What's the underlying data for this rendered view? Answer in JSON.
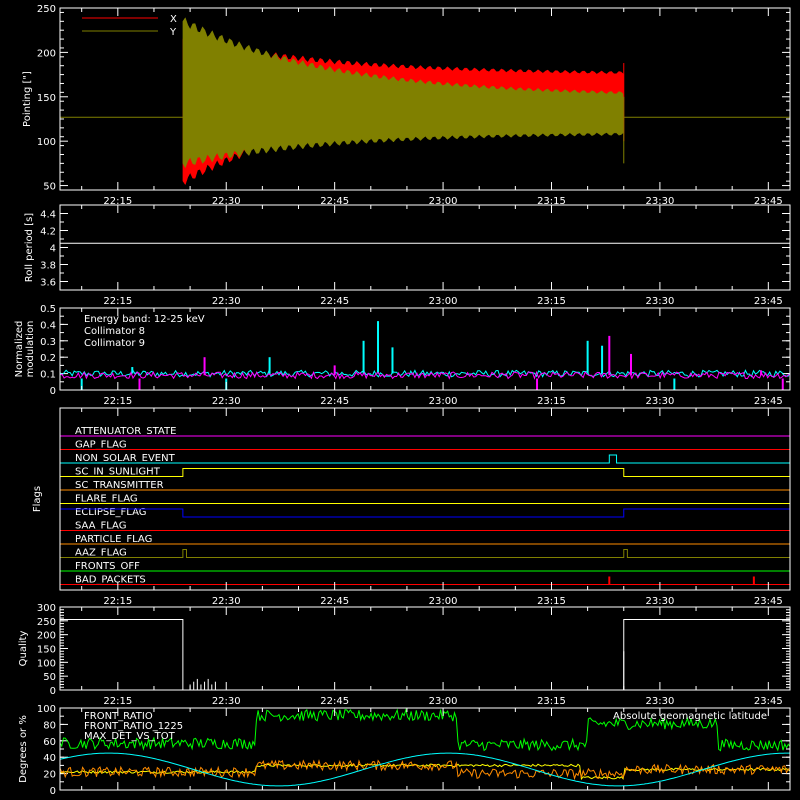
{
  "time_ticks": [
    "22:15",
    "22:30",
    "22:45",
    "23:00",
    "23:15",
    "23:30",
    "23:45"
  ],
  "xlim_minutes": [
    1327,
    1428
  ],
  "chart_data": [
    {
      "type": "line",
      "panel": "pointing",
      "ylabel": "Pointing [\"]",
      "ylim": [
        45,
        250
      ],
      "yticks": [
        50,
        100,
        150,
        200,
        250
      ],
      "legend_placement": "top-left",
      "series": [
        {
          "name": "X",
          "color": "#ff0000",
          "baseline": 127,
          "active_range": [
            "22:24",
            "23:25"
          ],
          "envelope_start": [
            55,
            215
          ],
          "envelope_end": [
            147,
            175
          ]
        },
        {
          "name": "Y",
          "color": "#808000",
          "baseline": 127,
          "active_range": [
            "22:24",
            "23:25"
          ],
          "envelope_start": [
            75,
            235
          ],
          "envelope_end": [
            110,
            150
          ]
        }
      ]
    },
    {
      "type": "line",
      "panel": "roll_period",
      "ylabel": "Roll period [s]",
      "ylim": [
        3.5,
        4.5
      ],
      "yticks": [
        3.6,
        3.8,
        4.0,
        4.2,
        4.4
      ],
      "series": [
        {
          "name": "",
          "color": "#ffffff",
          "value": 4.05
        }
      ]
    },
    {
      "type": "line",
      "panel": "modulation",
      "ylabel": "Normalized modulation",
      "ylim": [
        0,
        0.5
      ],
      "yticks": [
        0.0,
        0.1,
        0.2,
        0.3,
        0.4,
        0.5
      ],
      "annotation": "Energy band: 12-25 keV",
      "series": [
        {
          "name": "Collimator 8",
          "color": "#00ffff",
          "baseline": 0.1,
          "spikes": [
            [
              "22:51",
              0.42
            ],
            [
              "22:36",
              0.2
            ],
            [
              "22:49",
              0.3
            ],
            [
              "22:53",
              0.26
            ],
            [
              "23:20",
              0.3
            ],
            [
              "23:22",
              0.27
            ],
            [
              "22:17",
              0.14
            ]
          ]
        },
        {
          "name": "Collimator 9",
          "color": "#ff00ff",
          "baseline": 0.09,
          "spikes": [
            [
              "22:27",
              0.2
            ],
            [
              "23:23",
              0.33
            ],
            [
              "23:26",
              0.22
            ],
            [
              "22:45",
              0.15
            ],
            [
              "23:44",
              0.12
            ]
          ]
        }
      ]
    },
    {
      "type": "line",
      "panel": "flags",
      "ylabel": "Flags",
      "flags": [
        {
          "name": "ATTENUATOR_STATE",
          "color": "#ff00ff",
          "events": []
        },
        {
          "name": "GAP_FLAG",
          "color": "#ff0000",
          "events": []
        },
        {
          "name": "NON_SOLAR_EVENT",
          "color": "#00ffff",
          "events": [
            [
              "23:23",
              "23:24"
            ]
          ]
        },
        {
          "name": "SC_IN_SUNLIGHT",
          "color": "#ffff00",
          "events": [
            [
              "22:24",
              "23:25"
            ]
          ]
        },
        {
          "name": "SC_TRANSMITTER",
          "color": "#ff8c00",
          "events": []
        },
        {
          "name": "FLARE_FLAG",
          "color": "#ffff00",
          "events": []
        },
        {
          "name": "ECLIPSE_FLAG",
          "color": "#0000ff",
          "events": [
            [
              "22:10",
              "22:24"
            ],
            [
              "23:25",
              "23:48"
            ]
          ]
        },
        {
          "name": "SAA_FLAG",
          "color": "#ff0000",
          "events": []
        },
        {
          "name": "PARTICLE_FLAG",
          "color": "#ff8c00",
          "events": []
        },
        {
          "name": "AAZ_FLAG",
          "color": "#808000",
          "events": [
            [
              "22:24",
              "22:24.5"
            ],
            [
              "23:25",
              "23:25.5"
            ]
          ]
        },
        {
          "name": "FRONTS_OFF",
          "color": "#00ff00",
          "events": []
        },
        {
          "name": "BAD_PACKETS",
          "color": "#ff0000",
          "events": [
            [
              "23:23",
              "23:23.3"
            ],
            [
              "23:43",
              "23:43.3"
            ]
          ]
        }
      ]
    },
    {
      "type": "line",
      "panel": "quality",
      "ylabel": "Quality",
      "ylim": [
        0,
        300
      ],
      "yticks": [
        0,
        50,
        100,
        150,
        200,
        250,
        300
      ],
      "series": [
        {
          "name": "",
          "color": "#ffffff",
          "segments": [
            [
              "22:07",
              "22:24",
              255
            ],
            [
              "22:24",
              "23:25",
              0
            ],
            [
              "23:25",
              "23:48",
              255
            ]
          ]
        }
      ]
    },
    {
      "type": "line",
      "panel": "ratios",
      "ylabel": "Degrees or %",
      "ylim": [
        0,
        100
      ],
      "yticks": [
        0,
        20,
        40,
        60,
        80,
        100
      ],
      "series": [
        {
          "name": "FRONT_RATIO",
          "color": "#ffff00",
          "levels": [
            [
              "22:07",
              22
            ],
            [
              "22:34",
              30
            ],
            [
              "22:55",
              30
            ],
            [
              "23:19",
              15
            ],
            [
              "23:25",
              25
            ]
          ]
        },
        {
          "name": "FRONT_RATIO_1225",
          "color": "#00ff00",
          "levels": [
            [
              "22:07",
              57
            ],
            [
              "22:34",
              91
            ],
            [
              "23:02",
              55
            ],
            [
              "23:18",
              55
            ],
            [
              "23:20",
              81
            ],
            [
              "23:38",
              55
            ]
          ]
        },
        {
          "name": "MAX_DET_VS_TOT",
          "color": "#ff8c00",
          "levels": [
            [
              "22:07",
              22
            ],
            [
              "22:34",
              30
            ],
            [
              "23:02",
              20
            ],
            [
              "23:25",
              25
            ]
          ]
        },
        {
          "name": "Absolute geomagnetic latitude",
          "color": "#00ffff",
          "sine": {
            "amplitude": 20,
            "mid": 25,
            "period_min": 47,
            "phase_min": 1322
          }
        }
      ]
    }
  ]
}
